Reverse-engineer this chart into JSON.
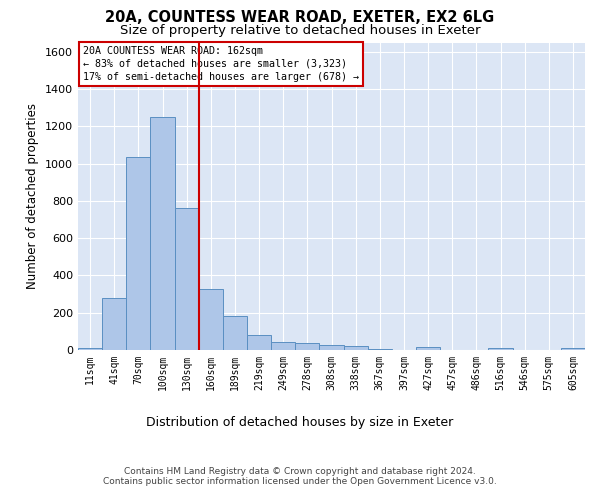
{
  "title_line1": "20A, COUNTESS WEAR ROAD, EXETER, EX2 6LG",
  "title_line2": "Size of property relative to detached houses in Exeter",
  "xlabel": "Distribution of detached houses by size in Exeter",
  "ylabel": "Number of detached properties",
  "footnote_line1": "Contains HM Land Registry data © Crown copyright and database right 2024.",
  "footnote_line2": "Contains public sector information licensed under the Open Government Licence v3.0.",
  "bin_labels": [
    "11sqm",
    "41sqm",
    "70sqm",
    "100sqm",
    "130sqm",
    "160sqm",
    "189sqm",
    "219sqm",
    "249sqm",
    "278sqm",
    "308sqm",
    "338sqm",
    "367sqm",
    "397sqm",
    "427sqm",
    "457sqm",
    "486sqm",
    "516sqm",
    "546sqm",
    "575sqm",
    "605sqm"
  ],
  "bar_values": [
    10,
    280,
    1035,
    1250,
    760,
    330,
    180,
    80,
    45,
    38,
    25,
    20,
    8,
    0,
    15,
    0,
    0,
    12,
    0,
    0,
    12
  ],
  "bar_color": "#aec6e8",
  "bar_edge_color": "#5a8fc2",
  "vline_color": "#cc0000",
  "vline_pos": 4.5,
  "annotation_line1": "20A COUNTESS WEAR ROAD: 162sqm",
  "annotation_line2": "← 83% of detached houses are smaller (3,323)",
  "annotation_line3": "17% of semi-detached houses are larger (678) →",
  "ylim": [
    0,
    1650
  ],
  "yticks": [
    0,
    200,
    400,
    600,
    800,
    1000,
    1200,
    1400,
    1600
  ],
  "bg_color": "#dce6f5",
  "title1_fontsize": 10.5,
  "title2_fontsize": 9.5,
  "ylabel_fontsize": 8.5,
  "xlabel_fontsize": 9.0,
  "tick_fontsize": 7.0,
  "annot_fontsize": 7.2,
  "footnote_fontsize": 6.5
}
